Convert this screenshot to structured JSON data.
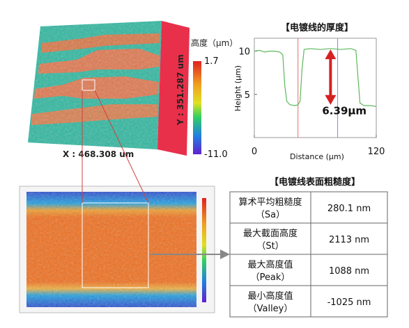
{
  "surface": {
    "x_label": "X : 468.308 um",
    "y_label": "Y : 351.287 um",
    "colorbar_title": "高度（μm）",
    "colorbar_max": "1.7",
    "colorbar_min": "-11.0"
  },
  "chart_data": {
    "type": "line",
    "title": "【电镀线的厚度】",
    "x_label": "Distance (μm)",
    "y_label": "Height (μm)",
    "annotation": "6.39μm",
    "x": [
      0,
      5,
      10,
      15,
      20,
      25,
      28,
      30,
      32,
      35,
      40,
      43,
      45,
      47,
      49,
      55,
      65,
      75,
      85,
      95,
      100,
      102,
      104,
      108,
      115,
      120
    ],
    "series": [
      {
        "name": "Height",
        "color": "#5cb85c",
        "values": [
          10,
          10.1,
          9.9,
          10,
          10,
          9.9,
          9.6,
          6,
          4.2,
          3.8,
          3.7,
          3.8,
          4.2,
          8,
          10.2,
          10.3,
          10.2,
          10.3,
          10.2,
          10.3,
          10.1,
          7,
          4,
          3.7,
          3.7,
          3.6
        ]
      }
    ],
    "cursors": [
      {
        "x": 43,
        "color": "#e07070"
      },
      {
        "x": 82,
        "color": "#7090e0"
      }
    ],
    "arrow": {
      "x": 75,
      "from": 3.8,
      "to": 10.2,
      "color": "#d62020"
    },
    "xlim": [
      0,
      120
    ],
    "ylim": [
      0,
      11.5
    ],
    "xticks": [
      0,
      120
    ],
    "yticks": [
      5,
      10
    ]
  },
  "table": {
    "title": "【电镀线表面粗糙度】",
    "rows": [
      {
        "name": "算术平均粗糙度",
        "symbol": "（Sa）",
        "value": "280.1 nm"
      },
      {
        "name": "最大截面高度",
        "symbol": "（St）",
        "value": "2113 nm"
      },
      {
        "name": "最大高度值",
        "symbol": "（Peak）",
        "value": "1088 nm"
      },
      {
        "name": "最小高度值",
        "symbol": "（Valley）",
        "value": "-1025 nm"
      }
    ]
  }
}
